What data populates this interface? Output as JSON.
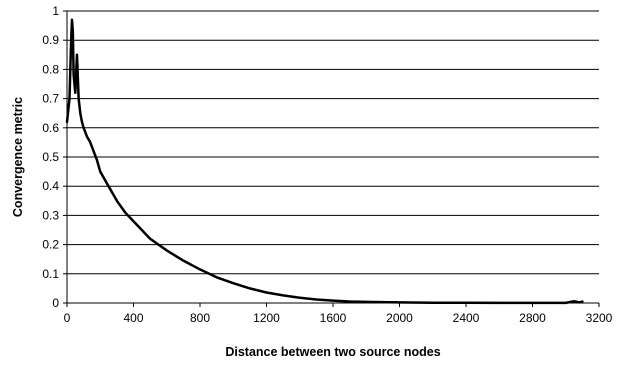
{
  "chart_data": {
    "type": "line",
    "title": "",
    "xlabel": "Distance between two source nodes",
    "ylabel": "Convergence metric",
    "xlim": [
      0,
      3200
    ],
    "ylim": [
      0,
      1
    ],
    "xticks": [
      0,
      400,
      800,
      1200,
      1600,
      2000,
      2400,
      2800,
      3200
    ],
    "yticks": [
      0,
      0.1,
      0.2,
      0.3,
      0.4,
      0.5,
      0.6,
      0.7,
      0.8,
      0.9,
      1
    ],
    "xtick_labels": [
      "0",
      "400",
      "800",
      "1200",
      "1600",
      "2000",
      "2400",
      "2800",
      "3200"
    ],
    "ytick_labels": [
      "0",
      "0.1",
      "0.2",
      "0.3",
      "0.4",
      "0.5",
      "0.6",
      "0.7",
      "0.8",
      "0.9",
      "1"
    ],
    "grid": "horizontal",
    "legend": "none",
    "line_color": "#000000",
    "series": [
      {
        "x": [
          0,
          15,
          25,
          30,
          35,
          40,
          50,
          60,
          70,
          80,
          90,
          100,
          120,
          140,
          160,
          180,
          200,
          250,
          300,
          350,
          400,
          450,
          500,
          600,
          700,
          800,
          900,
          1000,
          1100,
          1200,
          1300,
          1400,
          1500,
          1600,
          1700,
          1800,
          2000,
          2200,
          2400,
          2600,
          2800,
          3000,
          3050,
          3080,
          3100
        ],
        "y": [
          0.62,
          0.7,
          0.9,
          0.97,
          0.93,
          0.78,
          0.72,
          0.85,
          0.7,
          0.65,
          0.62,
          0.6,
          0.57,
          0.55,
          0.52,
          0.49,
          0.45,
          0.4,
          0.35,
          0.31,
          0.28,
          0.25,
          0.22,
          0.18,
          0.145,
          0.115,
          0.088,
          0.068,
          0.05,
          0.036,
          0.026,
          0.018,
          0.012,
          0.008,
          0.005,
          0.004,
          0.002,
          0.001,
          0.0008,
          0.0005,
          0.0004,
          0.0003,
          0.006,
          0.002,
          0.005
        ]
      }
    ]
  }
}
